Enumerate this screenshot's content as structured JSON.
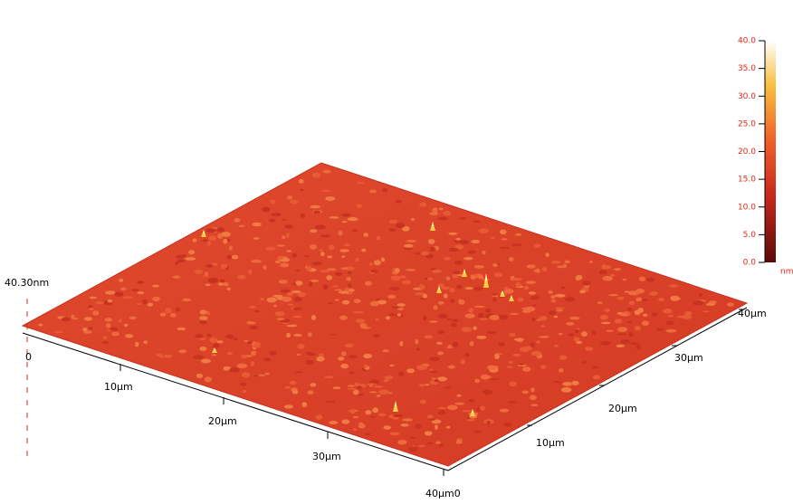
{
  "surface": {
    "height_label": "40.30nm",
    "z_zero": "0",
    "front_axis": {
      "ticks": [
        "10µm",
        "20µm",
        "30µm",
        "40µm0"
      ]
    },
    "right_axis": {
      "ticks": [
        "10µm",
        "20µm",
        "30µm",
        "40µm"
      ]
    }
  },
  "colorbar": {
    "ticks": [
      "40.0",
      "35.0",
      "30.0",
      "25.0",
      "20.0",
      "15.0",
      "10.0",
      "5.0",
      "0.0"
    ],
    "unit": "nm"
  }
}
